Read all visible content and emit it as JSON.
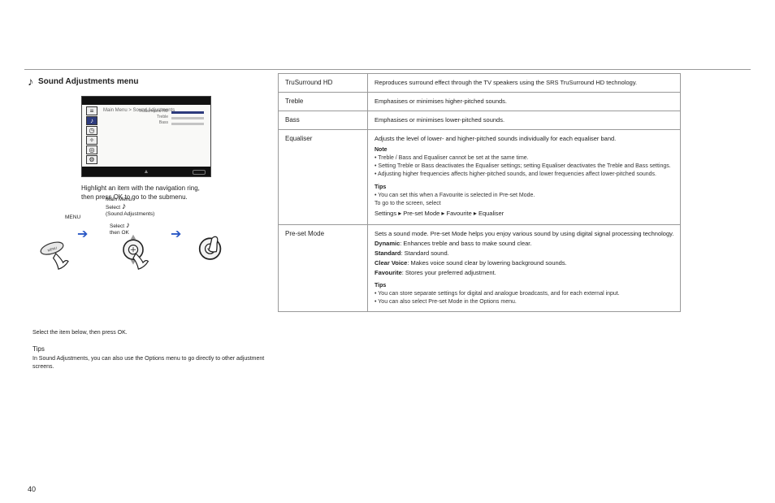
{
  "rule_color": "#999999",
  "accent": "#2a58c5",
  "section": {
    "icon": "♪",
    "title": "Sound Adjustments menu"
  },
  "device": {
    "top_bg": "#111111",
    "bot_bg": "#111111",
    "body_bg": "#f9f9f7",
    "breadcrumb": "Main Menu > Sound Adjustments",
    "icons": [
      "≡",
      "♪",
      "◷",
      "✧",
      "◎",
      "⚙"
    ],
    "selected_index": 1,
    "rows": [
      "TruSurround HD",
      "Treble",
      "Bass"
    ],
    "highlight_index": 0,
    "return": "↩"
  },
  "caption": "Highlight an item with the navigation ring, then press OK to go to the submenu.",
  "flow": {
    "step1": "MENU",
    "step2_pre": "Main Menu",
    "step2_line": "Select",
    "step2_post": "(Sound Adjustments)",
    "step3": "Select",
    "step3_post": "then OK"
  },
  "below": {
    "line": "Select the item below, then press OK.",
    "tips_label": "Tips",
    "tips_body": "In Sound Adjustments, you can also use the Options menu to go directly to other adjustment screens."
  },
  "table": {
    "rows": [
      {
        "k": "TruSurround HD",
        "v": "Reproduces surround effect through the TV speakers using the SRS TruSurround HD technology."
      },
      {
        "k": "Treble",
        "v": "Emphasises or minimises higher-pitched sounds."
      },
      {
        "k": "Bass",
        "v": "Emphasises or minimises lower-pitched sounds."
      },
      {
        "k": "Equaliser",
        "v_intro": "Adjusts the level of lower- and higher-pitched sounds individually for each equaliser band.",
        "v_note_label": "Note",
        "v_notes": [
          "Treble / Bass and Equaliser cannot be set at the same time.",
          "Setting Treble or Bass deactivates the Equaliser settings; setting Equaliser deactivates the Treble and Bass settings.",
          "Adjusting higher frequencies affects higher-pitched sounds, and lower frequencies affect lower-pitched sounds."
        ],
        "v_tips_label": "Tips",
        "v_tip": "You can set this when a Favourite is selected in Pre-set Mode.",
        "v_seq_label": "To go to the screen, select",
        "v_seq": [
          "Settings",
          "Pre-set Mode",
          "Favourite",
          "Equaliser"
        ]
      },
      {
        "k": "Pre-set Mode",
        "v_intro": "Sets a sound mode. Pre-set Mode helps you enjoy various sound by using digital signal processing technology.",
        "opts": [
          {
            "n": "Dynamic",
            "d": "Enhances treble and bass to make sound clear."
          },
          {
            "n": "Standard",
            "d": "Standard sound."
          },
          {
            "n": "Clear Voice",
            "d": "Makes voice sound clear by lowering background sounds."
          },
          {
            "n": "Favourite",
            "d": "Stores your preferred adjustment."
          }
        ],
        "v_tips_label": "Tips",
        "v_tips": [
          "You can store separate settings for digital and analogue broadcasts, and for each external input.",
          "You can also select Pre-set Mode in the Options menu."
        ]
      }
    ]
  },
  "page_no": "40"
}
